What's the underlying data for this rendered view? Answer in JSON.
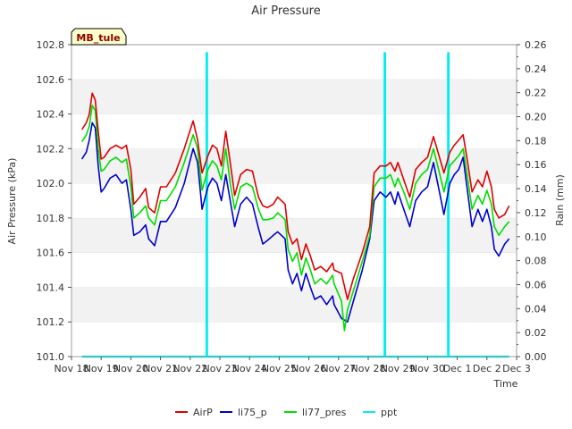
{
  "chart_data": {
    "type": "line",
    "title": "Air Pressure",
    "xlabel": "Time",
    "ylabel": "Air Pressure (kPa)",
    "y2label": "Rain (mm)",
    "station_label": "MB_tule",
    "xlim": [
      0,
      15
    ],
    "ylim": [
      101.0,
      102.8
    ],
    "y2lim": [
      0.0,
      0.26
    ],
    "x_ticks": [
      {
        "x": 0,
        "label": "Nov 18"
      },
      {
        "x": 1,
        "label": "Nov 19"
      },
      {
        "x": 2,
        "label": "Nov 20"
      },
      {
        "x": 3,
        "label": "Nov 21"
      },
      {
        "x": 4,
        "label": "Nov 22"
      },
      {
        "x": 5,
        "label": "Nov 23"
      },
      {
        "x": 6,
        "label": "Nov 24"
      },
      {
        "x": 7,
        "label": "Nov 25"
      },
      {
        "x": 8,
        "label": "Nov 26"
      },
      {
        "x": 9,
        "label": "Nov 27"
      },
      {
        "x": 10,
        "label": "Nov 28"
      },
      {
        "x": 11,
        "label": "Nov 29"
      },
      {
        "x": 12,
        "label": "Nov 30"
      },
      {
        "x": 13,
        "label": "Dec 1"
      },
      {
        "x": 14,
        "label": "Dec 2"
      },
      {
        "x": 15,
        "label": "Dec 3"
      }
    ],
    "y_ticks": [
      "101.0",
      "101.2",
      "101.4",
      "101.6",
      "101.8",
      "102.0",
      "102.2",
      "102.4",
      "102.6",
      "102.8"
    ],
    "y2_ticks": [
      "0.00",
      "0.02",
      "0.04",
      "0.06",
      "0.08",
      "0.10",
      "0.12",
      "0.14",
      "0.16",
      "0.18",
      "0.20",
      "0.22",
      "0.24",
      "0.26"
    ],
    "grid": "horizontal bands",
    "legend_position": "bottom",
    "series": [
      {
        "name": "AirP",
        "axis": "left",
        "color": "#dd0000",
        "points": [
          [
            0.35,
            102.31
          ],
          [
            0.5,
            102.35
          ],
          [
            0.6,
            102.4
          ],
          [
            0.7,
            102.52
          ],
          [
            0.8,
            102.48
          ],
          [
            0.9,
            102.3
          ],
          [
            1.0,
            102.14
          ],
          [
            1.1,
            102.15
          ],
          [
            1.3,
            102.2
          ],
          [
            1.5,
            102.22
          ],
          [
            1.7,
            102.2
          ],
          [
            1.85,
            102.22
          ],
          [
            2.0,
            102.08
          ],
          [
            2.1,
            101.88
          ],
          [
            2.3,
            101.92
          ],
          [
            2.5,
            101.97
          ],
          [
            2.6,
            101.86
          ],
          [
            2.8,
            101.83
          ],
          [
            3.0,
            101.98
          ],
          [
            3.2,
            101.98
          ],
          [
            3.5,
            102.06
          ],
          [
            3.8,
            102.2
          ],
          [
            4.1,
            102.36
          ],
          [
            4.25,
            102.25
          ],
          [
            4.4,
            102.06
          ],
          [
            4.6,
            102.16
          ],
          [
            4.75,
            102.22
          ],
          [
            4.9,
            102.2
          ],
          [
            5.05,
            102.1
          ],
          [
            5.2,
            102.3
          ],
          [
            5.35,
            102.12
          ],
          [
            5.5,
            101.93
          ],
          [
            5.7,
            102.05
          ],
          [
            5.9,
            102.08
          ],
          [
            6.1,
            102.07
          ],
          [
            6.3,
            101.92
          ],
          [
            6.45,
            101.87
          ],
          [
            6.6,
            101.86
          ],
          [
            6.8,
            101.88
          ],
          [
            6.95,
            101.92
          ],
          [
            7.2,
            101.88
          ],
          [
            7.3,
            101.72
          ],
          [
            7.45,
            101.65
          ],
          [
            7.6,
            101.68
          ],
          [
            7.75,
            101.56
          ],
          [
            7.9,
            101.65
          ],
          [
            8.05,
            101.58
          ],
          [
            8.2,
            101.5
          ],
          [
            8.4,
            101.52
          ],
          [
            8.6,
            101.49
          ],
          [
            8.8,
            101.54
          ],
          [
            8.85,
            101.5
          ],
          [
            9.1,
            101.48
          ],
          [
            9.3,
            101.33
          ],
          [
            9.5,
            101.45
          ],
          [
            9.8,
            101.6
          ],
          [
            10.05,
            101.75
          ],
          [
            10.2,
            102.06
          ],
          [
            10.4,
            102.1
          ],
          [
            10.6,
            102.1
          ],
          [
            10.75,
            102.12
          ],
          [
            10.9,
            102.07
          ],
          [
            11.0,
            102.12
          ],
          [
            11.2,
            102.02
          ],
          [
            11.4,
            101.92
          ],
          [
            11.6,
            102.08
          ],
          [
            11.8,
            102.12
          ],
          [
            12.0,
            102.15
          ],
          [
            12.2,
            102.27
          ],
          [
            12.4,
            102.15
          ],
          [
            12.55,
            102.06
          ],
          [
            12.75,
            102.18
          ],
          [
            12.9,
            102.22
          ],
          [
            13.05,
            102.25
          ],
          [
            13.2,
            102.28
          ],
          [
            13.35,
            102.12
          ],
          [
            13.5,
            101.95
          ],
          [
            13.7,
            102.02
          ],
          [
            13.85,
            101.98
          ],
          [
            14.0,
            102.07
          ],
          [
            14.15,
            101.98
          ],
          [
            14.25,
            101.85
          ],
          [
            14.4,
            101.8
          ],
          [
            14.6,
            101.82
          ],
          [
            14.75,
            101.87
          ]
        ]
      },
      {
        "name": "li75_p",
        "axis": "left",
        "color": "#0000cc",
        "points": [
          [
            0.35,
            102.14
          ],
          [
            0.5,
            102.18
          ],
          [
            0.6,
            102.25
          ],
          [
            0.7,
            102.35
          ],
          [
            0.8,
            102.32
          ],
          [
            0.9,
            102.1
          ],
          [
            1.0,
            101.95
          ],
          [
            1.1,
            101.97
          ],
          [
            1.3,
            102.03
          ],
          [
            1.5,
            102.05
          ],
          [
            1.7,
            102.0
          ],
          [
            1.85,
            102.02
          ],
          [
            2.0,
            101.85
          ],
          [
            2.1,
            101.7
          ],
          [
            2.3,
            101.72
          ],
          [
            2.5,
            101.76
          ],
          [
            2.6,
            101.68
          ],
          [
            2.8,
            101.64
          ],
          [
            3.0,
            101.78
          ],
          [
            3.2,
            101.78
          ],
          [
            3.5,
            101.86
          ],
          [
            3.8,
            102.0
          ],
          [
            4.1,
            102.2
          ],
          [
            4.25,
            102.12
          ],
          [
            4.4,
            101.85
          ],
          [
            4.6,
            101.98
          ],
          [
            4.75,
            102.03
          ],
          [
            4.9,
            102.0
          ],
          [
            5.05,
            101.9
          ],
          [
            5.2,
            102.05
          ],
          [
            5.35,
            101.9
          ],
          [
            5.5,
            101.75
          ],
          [
            5.7,
            101.88
          ],
          [
            5.9,
            101.92
          ],
          [
            6.1,
            101.88
          ],
          [
            6.3,
            101.74
          ],
          [
            6.45,
            101.65
          ],
          [
            6.6,
            101.67
          ],
          [
            6.8,
            101.7
          ],
          [
            6.95,
            101.72
          ],
          [
            7.2,
            101.68
          ],
          [
            7.3,
            101.5
          ],
          [
            7.45,
            101.42
          ],
          [
            7.6,
            101.48
          ],
          [
            7.75,
            101.38
          ],
          [
            7.9,
            101.48
          ],
          [
            8.05,
            101.4
          ],
          [
            8.2,
            101.33
          ],
          [
            8.4,
            101.35
          ],
          [
            8.6,
            101.3
          ],
          [
            8.8,
            101.35
          ],
          [
            8.85,
            101.3
          ],
          [
            9.1,
            101.22
          ],
          [
            9.3,
            101.2
          ],
          [
            9.5,
            101.32
          ],
          [
            9.8,
            101.5
          ],
          [
            10.05,
            101.68
          ],
          [
            10.2,
            101.9
          ],
          [
            10.4,
            101.95
          ],
          [
            10.6,
            101.92
          ],
          [
            10.75,
            101.95
          ],
          [
            10.9,
            101.88
          ],
          [
            11.0,
            101.95
          ],
          [
            11.2,
            101.85
          ],
          [
            11.4,
            101.75
          ],
          [
            11.6,
            101.9
          ],
          [
            11.8,
            101.95
          ],
          [
            12.0,
            101.98
          ],
          [
            12.2,
            102.12
          ],
          [
            12.4,
            101.95
          ],
          [
            12.55,
            101.82
          ],
          [
            12.75,
            102.0
          ],
          [
            12.9,
            102.05
          ],
          [
            13.05,
            102.08
          ],
          [
            13.2,
            102.15
          ],
          [
            13.35,
            101.95
          ],
          [
            13.5,
            101.75
          ],
          [
            13.7,
            101.85
          ],
          [
            13.85,
            101.78
          ],
          [
            14.0,
            101.85
          ],
          [
            14.15,
            101.75
          ],
          [
            14.25,
            101.62
          ],
          [
            14.4,
            101.58
          ],
          [
            14.6,
            101.65
          ],
          [
            14.75,
            101.68
          ]
        ]
      },
      {
        "name": "li77_pres",
        "axis": "left",
        "color": "#00dd00",
        "points": [
          [
            0.35,
            102.24
          ],
          [
            0.5,
            102.28
          ],
          [
            0.6,
            102.33
          ],
          [
            0.7,
            102.45
          ],
          [
            0.8,
            102.42
          ],
          [
            0.9,
            102.2
          ],
          [
            1.0,
            102.07
          ],
          [
            1.1,
            102.08
          ],
          [
            1.3,
            102.13
          ],
          [
            1.5,
            102.15
          ],
          [
            1.7,
            102.12
          ],
          [
            1.85,
            102.14
          ],
          [
            2.0,
            101.98
          ],
          [
            2.1,
            101.8
          ],
          [
            2.3,
            101.83
          ],
          [
            2.5,
            101.87
          ],
          [
            2.6,
            101.8
          ],
          [
            2.8,
            101.76
          ],
          [
            3.0,
            101.9
          ],
          [
            3.2,
            101.9
          ],
          [
            3.5,
            101.98
          ],
          [
            3.8,
            102.12
          ],
          [
            4.1,
            102.28
          ],
          [
            4.25,
            102.2
          ],
          [
            4.4,
            101.96
          ],
          [
            4.6,
            102.08
          ],
          [
            4.75,
            102.13
          ],
          [
            4.9,
            102.1
          ],
          [
            5.05,
            102.02
          ],
          [
            5.2,
            102.2
          ],
          [
            5.35,
            102.0
          ],
          [
            5.5,
            101.85
          ],
          [
            5.7,
            101.98
          ],
          [
            5.9,
            102.0
          ],
          [
            6.1,
            101.98
          ],
          [
            6.3,
            101.85
          ],
          [
            6.45,
            101.79
          ],
          [
            6.6,
            101.79
          ],
          [
            6.8,
            101.8
          ],
          [
            6.95,
            101.83
          ],
          [
            7.2,
            101.79
          ],
          [
            7.3,
            101.62
          ],
          [
            7.45,
            101.55
          ],
          [
            7.6,
            101.6
          ],
          [
            7.75,
            101.47
          ],
          [
            7.9,
            101.57
          ],
          [
            8.05,
            101.5
          ],
          [
            8.2,
            101.42
          ],
          [
            8.4,
            101.45
          ],
          [
            8.6,
            101.42
          ],
          [
            8.8,
            101.47
          ],
          [
            8.85,
            101.42
          ],
          [
            9.1,
            101.32
          ],
          [
            9.2,
            101.15
          ],
          [
            9.3,
            101.27
          ],
          [
            9.5,
            101.38
          ],
          [
            9.8,
            101.55
          ],
          [
            10.05,
            101.7
          ],
          [
            10.2,
            101.98
          ],
          [
            10.4,
            102.03
          ],
          [
            10.6,
            102.03
          ],
          [
            10.75,
            102.05
          ],
          [
            10.9,
            101.98
          ],
          [
            11.0,
            102.03
          ],
          [
            11.2,
            101.95
          ],
          [
            11.4,
            101.85
          ],
          [
            11.6,
            102.0
          ],
          [
            11.8,
            102.05
          ],
          [
            12.0,
            102.08
          ],
          [
            12.2,
            102.2
          ],
          [
            12.4,
            102.06
          ],
          [
            12.55,
            101.95
          ],
          [
            12.75,
            102.1
          ],
          [
            12.9,
            102.13
          ],
          [
            13.05,
            102.16
          ],
          [
            13.2,
            102.2
          ],
          [
            13.35,
            102.03
          ],
          [
            13.5,
            101.85
          ],
          [
            13.7,
            101.93
          ],
          [
            13.85,
            101.88
          ],
          [
            14.0,
            101.96
          ],
          [
            14.15,
            101.88
          ],
          [
            14.25,
            101.75
          ],
          [
            14.4,
            101.7
          ],
          [
            14.6,
            101.75
          ],
          [
            14.75,
            101.78
          ]
        ]
      },
      {
        "name": "ppt",
        "axis": "right",
        "color": "#00eeee",
        "points": [
          [
            0.35,
            0.0
          ],
          [
            4.55,
            0.0
          ],
          [
            4.55,
            0.253
          ],
          [
            4.57,
            0.253
          ],
          [
            4.57,
            0.0
          ],
          [
            10.55,
            0.0
          ],
          [
            10.55,
            0.253
          ],
          [
            10.57,
            0.253
          ],
          [
            10.57,
            0.0
          ],
          [
            12.69,
            0.0
          ],
          [
            12.69,
            0.253
          ],
          [
            12.71,
            0.253
          ],
          [
            12.71,
            0.0
          ],
          [
            14.75,
            0.0
          ]
        ]
      }
    ]
  }
}
